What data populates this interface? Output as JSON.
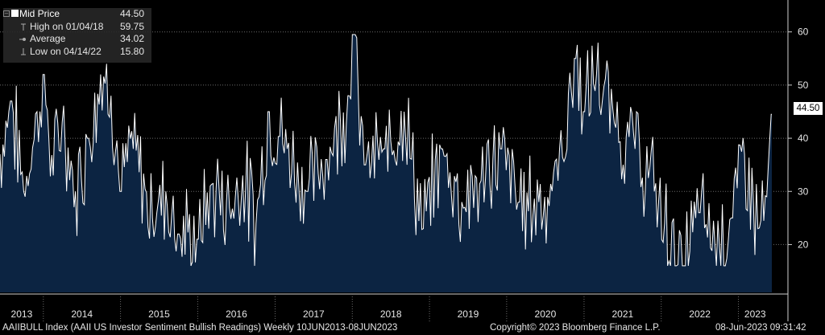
{
  "legend": {
    "title": "Mid Price",
    "title_value": "44.50",
    "rows": [
      {
        "name": "High on 01/04/18",
        "value": "59.75"
      },
      {
        "name": "Average",
        "value": "34.02"
      },
      {
        "name": "Low on 04/14/22",
        "value": "15.80"
      }
    ]
  },
  "last_value_tag": "44.50",
  "footer": {
    "ticker": "AAIIBULL Index (AAII US Investor Sentiment Bullish Readings)  Weekly 10JUN2013-08JUN2023",
    "copyright": "Copyright© 2023 Bloomberg Finance L.P.",
    "timestamp": "08-Jun-2023 09:31:42"
  },
  "colors": {
    "background": "#000000",
    "area": "#0c2442",
    "line": "#ffffff",
    "grid": "#6a6a6a"
  },
  "chart_data": {
    "type": "area",
    "title": "",
    "xlabel": "",
    "ylabel": "",
    "xlim": [
      "2013-06-10",
      "2023-06-08"
    ],
    "ylim": [
      11,
      66
    ],
    "grid": true,
    "y_axis_side": "right",
    "yticks": [
      "20",
      "30",
      "40",
      "50",
      "60"
    ],
    "xticks": [
      "2013",
      "2014",
      "2015",
      "2016",
      "2017",
      "2018",
      "2019",
      "2020",
      "2021",
      "2022",
      "2023"
    ],
    "average": 34.02,
    "high": {
      "date": "2018-01-04",
      "value": 59.75
    },
    "low": {
      "date": "2022-04-14",
      "value": 15.8
    },
    "last": {
      "date": "2023-06-08",
      "value": 44.5
    },
    "series": [
      {
        "values": [
          {
            "x": "2013-06-10",
            "y": 37
          },
          {
            "x": "2013-08-01",
            "y": 47
          },
          {
            "x": "2013-10-01",
            "y": 30
          },
          {
            "x": "2013-12-01",
            "y": 45
          },
          {
            "x": "2014-01-02",
            "y": 52
          },
          {
            "x": "2014-02-15",
            "y": 33
          },
          {
            "x": "2014-04-01",
            "y": 43
          },
          {
            "x": "2014-06-01",
            "y": 30
          },
          {
            "x": "2014-08-01",
            "y": 40
          },
          {
            "x": "2014-10-01",
            "y": 52
          },
          {
            "x": "2014-11-15",
            "y": 48
          },
          {
            "x": "2015-01-01",
            "y": 30
          },
          {
            "x": "2015-03-01",
            "y": 38
          },
          {
            "x": "2015-06-01",
            "y": 25
          },
          {
            "x": "2015-08-01",
            "y": 30
          },
          {
            "x": "2015-10-01",
            "y": 22
          },
          {
            "x": "2016-01-01",
            "y": 21
          },
          {
            "x": "2016-03-01",
            "y": 31
          },
          {
            "x": "2016-06-01",
            "y": 27
          },
          {
            "x": "2016-08-01",
            "y": 33
          },
          {
            "x": "2016-10-01",
            "y": 24
          },
          {
            "x": "2016-12-01",
            "y": 45
          },
          {
            "x": "2017-03-01",
            "y": 38
          },
          {
            "x": "2017-06-01",
            "y": 30
          },
          {
            "x": "2017-09-01",
            "y": 36
          },
          {
            "x": "2017-12-15",
            "y": 48
          },
          {
            "x": "2018-01-04",
            "y": 59.75
          },
          {
            "x": "2018-03-01",
            "y": 35
          },
          {
            "x": "2018-06-01",
            "y": 38
          },
          {
            "x": "2018-09-01",
            "y": 45
          },
          {
            "x": "2018-12-01",
            "y": 23
          },
          {
            "x": "2019-03-01",
            "y": 38
          },
          {
            "x": "2019-06-01",
            "y": 28
          },
          {
            "x": "2019-09-01",
            "y": 32
          },
          {
            "x": "2019-12-01",
            "y": 38
          },
          {
            "x": "2020-03-01",
            "y": 28
          },
          {
            "x": "2020-06-01",
            "y": 28
          },
          {
            "x": "2020-09-01",
            "y": 32
          },
          {
            "x": "2020-11-20",
            "y": 55
          },
          {
            "x": "2021-01-01",
            "y": 45
          },
          {
            "x": "2021-03-01",
            "y": 52
          },
          {
            "x": "2021-06-01",
            "y": 42
          },
          {
            "x": "2021-09-01",
            "y": 38
          },
          {
            "x": "2021-12-01",
            "y": 30
          },
          {
            "x": "2022-01-15",
            "y": 24
          },
          {
            "x": "2022-04-14",
            "y": 15.8
          },
          {
            "x": "2022-07-01",
            "y": 26
          },
          {
            "x": "2022-10-01",
            "y": 20
          },
          {
            "x": "2022-12-01",
            "y": 25
          },
          {
            "x": "2023-02-01",
            "y": 37
          },
          {
            "x": "2023-04-01",
            "y": 23
          },
          {
            "x": "2023-05-15",
            "y": 29
          },
          {
            "x": "2023-06-08",
            "y": 44.5
          }
        ]
      }
    ]
  }
}
